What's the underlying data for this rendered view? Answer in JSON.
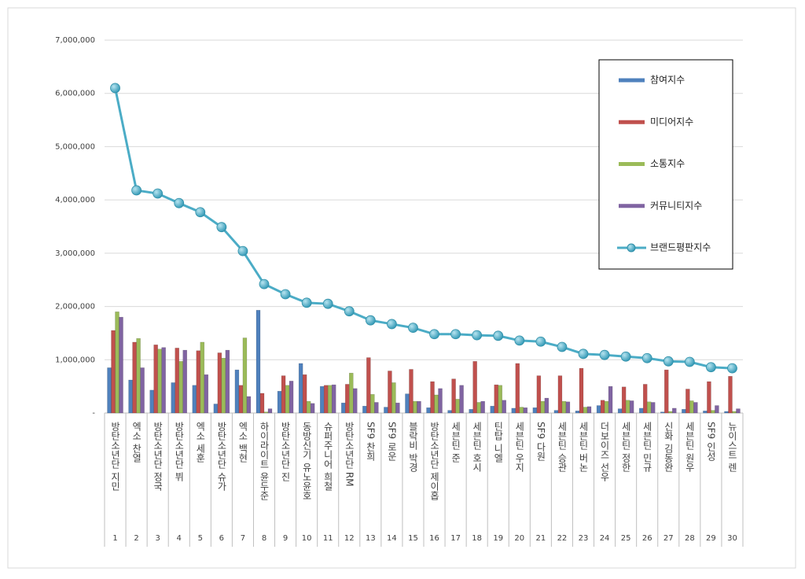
{
  "chart_data": {
    "type": "bar",
    "categories": [
      "방탄소년단 지민",
      "엑소 찬열",
      "방탄소년단 정국",
      "방탄소년단 뷔",
      "엑소 세훈",
      "방탄소년단 슈가",
      "엑소 백현",
      "하이라이트 윤두준",
      "방탄소년단 진",
      "동방신기 유노윤호",
      "슈퍼주니어 희철",
      "방탄소년단 RM",
      "SF9 찬희",
      "SF9 로운",
      "블락비 박경",
      "방탄소년단 제이홉",
      "세븐틴 준",
      "세븐틴 호시",
      "틴탑 니엘",
      "세븐틴 우지",
      "SF9 다원",
      "세븐틴 승관",
      "세븐틴 버논",
      "더보이즈 선우",
      "세븐틴 정한",
      "세븐틴 민규",
      "신화 김동완",
      "세븐틴 원우",
      "SF9 인성",
      "뉴이스트 렌"
    ],
    "ranks": [
      1,
      2,
      3,
      4,
      5,
      6,
      7,
      8,
      9,
      10,
      11,
      12,
      13,
      14,
      15,
      16,
      17,
      18,
      19,
      20,
      21,
      22,
      23,
      24,
      25,
      26,
      27,
      28,
      29,
      30
    ],
    "ylim": [
      0,
      7000000
    ],
    "yticks": [
      {
        "value": 0,
        "label": "-"
      },
      {
        "value": 1000000,
        "label": "1,000,000"
      },
      {
        "value": 2000000,
        "label": "2,000,000"
      },
      {
        "value": 3000000,
        "label": "3,000,000"
      },
      {
        "value": 4000000,
        "label": "4,000,000"
      },
      {
        "value": 5000000,
        "label": "5,000,000"
      },
      {
        "value": 6000000,
        "label": "6,000,000"
      },
      {
        "value": 7000000,
        "label": "7,000,000"
      }
    ],
    "grid": true,
    "legend": "right",
    "series": [
      {
        "name": "참여지수",
        "type": "bar",
        "color": "#4f81bd",
        "values": [
          850000,
          620000,
          430000,
          570000,
          520000,
          170000,
          810000,
          1930000,
          410000,
          930000,
          500000,
          190000,
          130000,
          110000,
          360000,
          100000,
          50000,
          70000,
          130000,
          90000,
          100000,
          50000,
          40000,
          140000,
          80000,
          90000,
          20000,
          70000,
          40000,
          30000
        ]
      },
      {
        "name": "미디어지수",
        "type": "bar",
        "color": "#c0504d",
        "values": [
          1550000,
          1330000,
          1280000,
          1220000,
          1170000,
          1130000,
          520000,
          370000,
          700000,
          720000,
          520000,
          540000,
          1040000,
          790000,
          820000,
          590000,
          640000,
          970000,
          530000,
          930000,
          700000,
          700000,
          840000,
          240000,
          490000,
          540000,
          810000,
          450000,
          590000,
          690000
        ]
      },
      {
        "name": "소통지수",
        "type": "bar",
        "color": "#9bbb59",
        "values": [
          1900000,
          1400000,
          1200000,
          970000,
          1330000,
          1030000,
          1410000,
          20000,
          520000,
          220000,
          520000,
          750000,
          350000,
          570000,
          220000,
          340000,
          260000,
          200000,
          520000,
          110000,
          220000,
          220000,
          110000,
          220000,
          240000,
          210000,
          30000,
          230000,
          50000,
          30000
        ]
      },
      {
        "name": "커뮤니티지수",
        "type": "bar",
        "color": "#8064a2",
        "values": [
          1800000,
          850000,
          1230000,
          1180000,
          720000,
          1180000,
          310000,
          80000,
          600000,
          180000,
          530000,
          460000,
          200000,
          190000,
          220000,
          460000,
          520000,
          220000,
          240000,
          100000,
          280000,
          210000,
          120000,
          500000,
          230000,
          200000,
          90000,
          200000,
          140000,
          80000
        ]
      },
      {
        "name": "브랜드평판지수",
        "type": "line",
        "color": "#4bacc6",
        "values": [
          6100000,
          4180000,
          4120000,
          3940000,
          3770000,
          3490000,
          3040000,
          2420000,
          2230000,
          2070000,
          2050000,
          1910000,
          1740000,
          1670000,
          1600000,
          1480000,
          1480000,
          1460000,
          1450000,
          1360000,
          1340000,
          1240000,
          1110000,
          1090000,
          1060000,
          1030000,
          970000,
          960000,
          860000,
          840000
        ]
      }
    ]
  }
}
